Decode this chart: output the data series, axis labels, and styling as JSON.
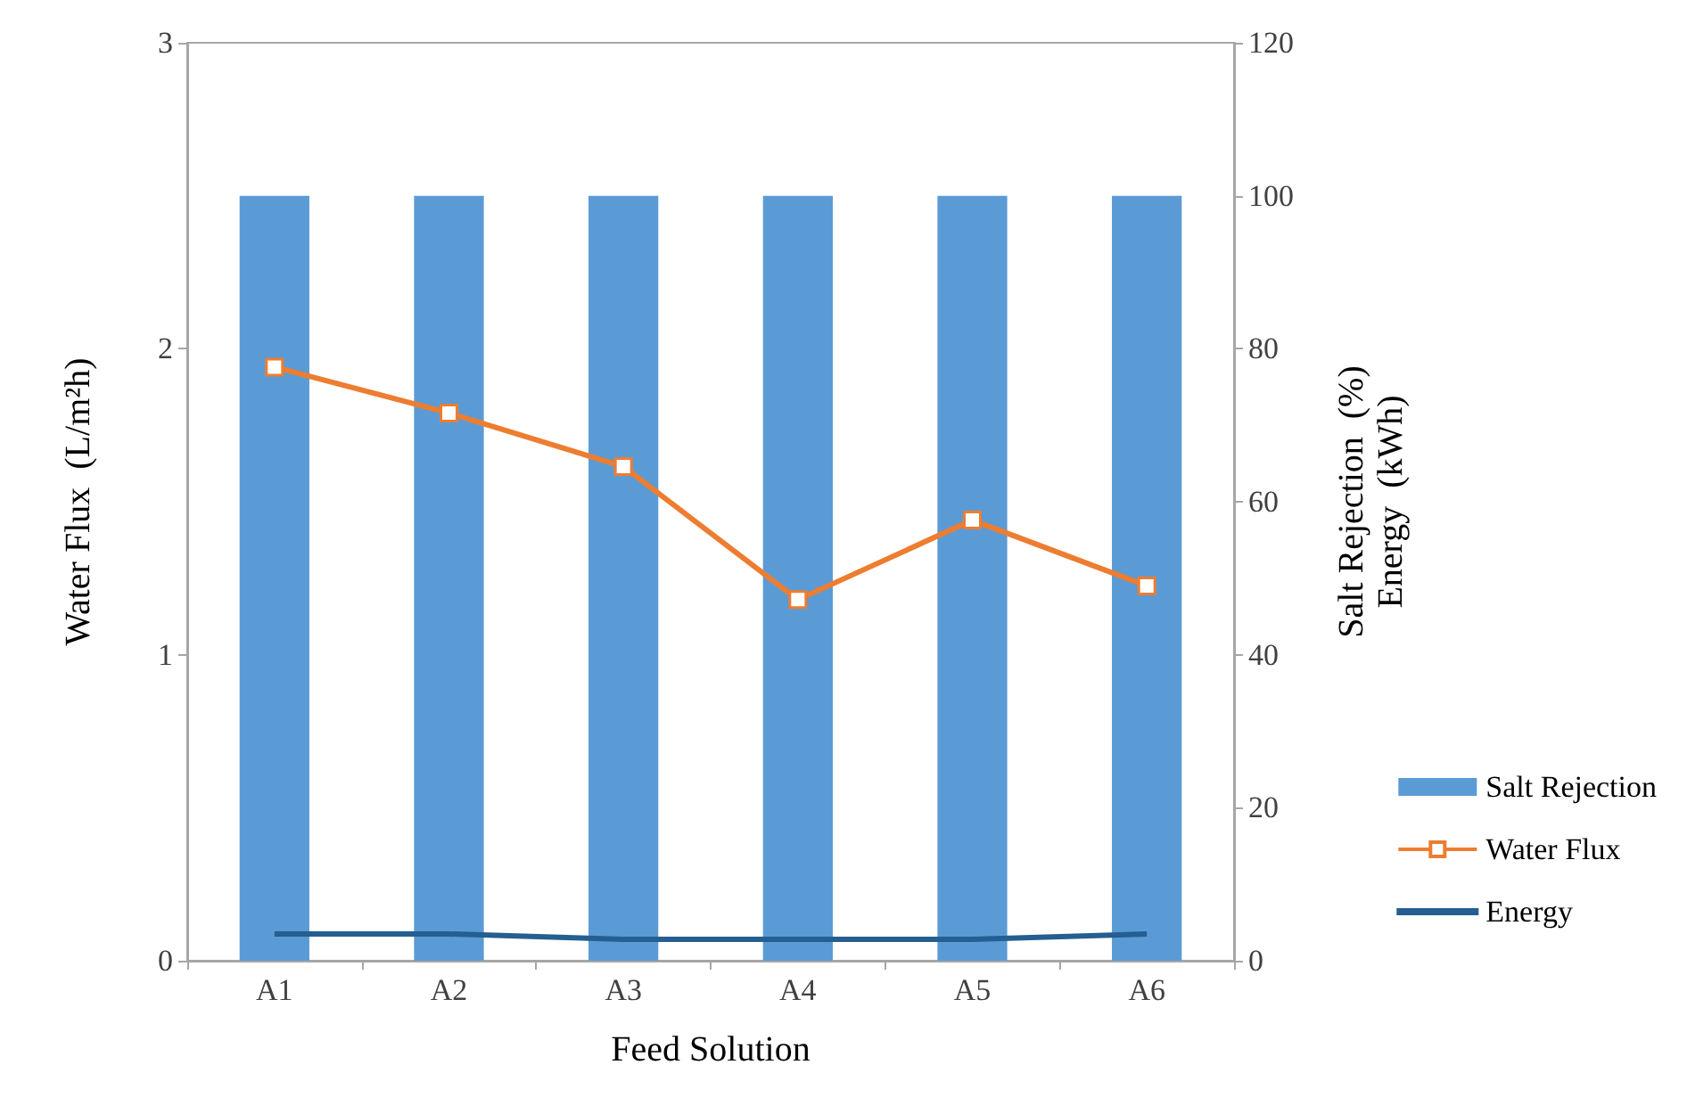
{
  "chart_data": {
    "type": "bar",
    "xlabel": "Feed Solution",
    "ylabel": "Water Flux  (L/m²h)",
    "y2label": "Salt Rejection  (%)\nEnergy  (kWh)",
    "categories": [
      "A1",
      "A2",
      "A3",
      "A4",
      "A5",
      "A6"
    ],
    "series": [
      {
        "name": "Salt Rejection",
        "axis": "y2",
        "color": "#5b9bd5",
        "values": [
          100,
          100,
          100,
          100,
          100,
          100
        ]
      },
      {
        "name": "Water Flux",
        "type": "line",
        "marker": "square",
        "color": "#ed7d31",
        "values": [
          1.94,
          1.79,
          1.615,
          1.18,
          1.44,
          1.225
        ]
      },
      {
        "name": "Energy",
        "type": "line",
        "axis": "y2",
        "marker": "none",
        "color": "#255e91",
        "values": [
          3.5,
          3.5,
          2.8,
          2.8,
          2.8,
          3.5
        ]
      }
    ],
    "ylim": [
      0,
      3
    ],
    "yticks": [
      0,
      1,
      2,
      3
    ],
    "y2lim": [
      0,
      120
    ],
    "y2ticks": [
      0,
      20,
      40,
      60,
      80,
      100,
      120
    ],
    "grid": false,
    "legend": "right"
  }
}
